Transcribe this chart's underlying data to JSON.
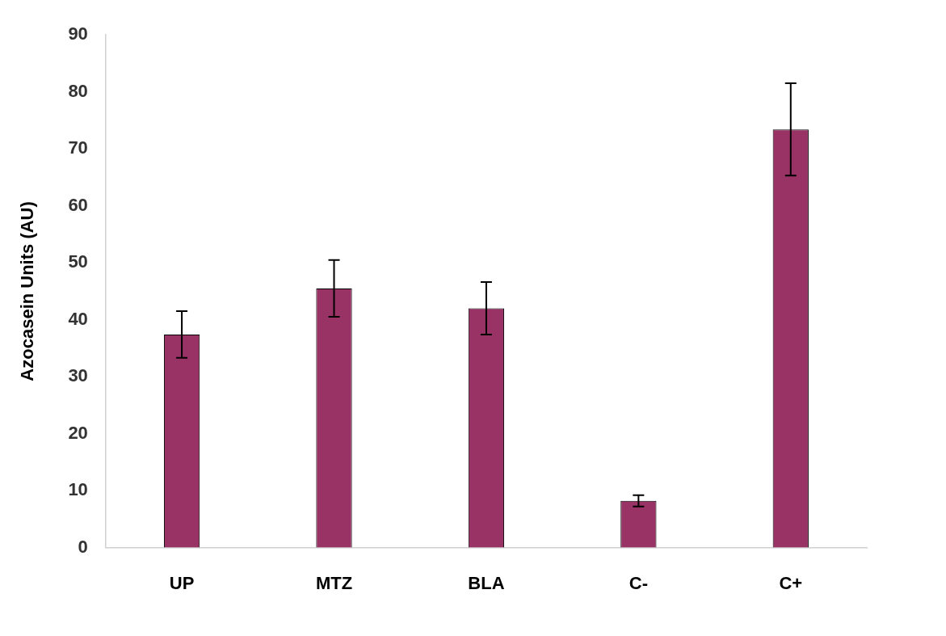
{
  "chart_data": {
    "type": "bar",
    "ylabel": "Azocasein Units (AU)",
    "categories": [
      "UP",
      "MTZ",
      "BLA",
      "C-",
      "C+"
    ],
    "values": [
      37.4,
      45.5,
      42,
      8.2,
      73.4
    ],
    "errors": [
      4.1,
      5,
      4.6,
      1,
      8.1
    ],
    "color": "#993366",
    "ylim": [
      0,
      90
    ],
    "yticks": [
      0,
      10,
      20,
      30,
      40,
      50,
      60,
      70,
      80,
      90
    ],
    "grid": false,
    "legend": false
  }
}
